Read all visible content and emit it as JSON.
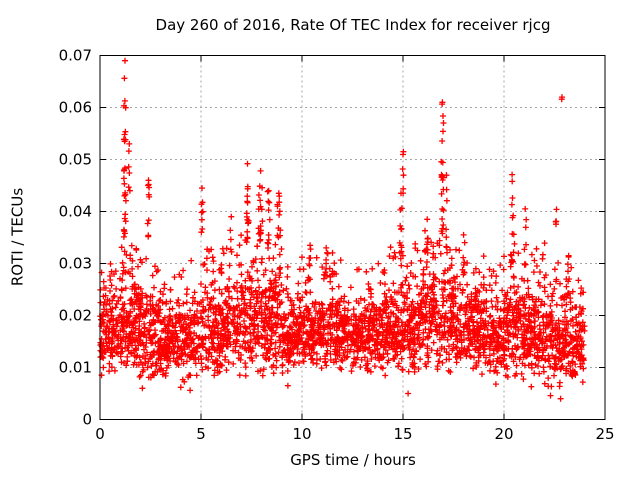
{
  "chart_data": {
    "type": "scatter",
    "title": "Day 260 of 2016, Rate Of TEC Index for receiver rjcg",
    "xlabel": "GPS time / hours",
    "ylabel": "ROTI / TECUs",
    "xlim": [
      0,
      25
    ],
    "ylim": [
      0,
      0.07
    ],
    "xticks": {
      "values": [
        0,
        5,
        10,
        15,
        20,
        25
      ],
      "labels": [
        "0",
        "5",
        "10",
        "15",
        "20",
        "25"
      ]
    },
    "yticks": {
      "values": [
        0,
        0.01,
        0.02,
        0.03,
        0.04,
        0.05,
        0.06,
        0.07
      ],
      "labels": [
        "0",
        "0.01",
        "0.02",
        "0.03",
        "0.04",
        "0.05",
        "0.06",
        "0.07"
      ]
    },
    "grid": "dotted-major",
    "legend": "none",
    "marker": "plus",
    "marker_color": "#ff0000",
    "grid_color": "#a6a6a6",
    "border_color": "#000000",
    "seed": 2016260,
    "base_cloud": {
      "n": 3400,
      "comment": "dense noise band per hour: floor=lower envelope, core=top of dense mass, peak=top of spiky columns (TECU)",
      "floor": [
        0.008,
        0.008,
        0.0075,
        0.0075,
        0.0065,
        0.0075,
        0.008,
        0.008,
        0.008,
        0.0085,
        0.009,
        0.009,
        0.009,
        0.0085,
        0.008,
        0.0075,
        0.008,
        0.008,
        0.008,
        0.008,
        0.0075,
        0.0065,
        0.0055,
        0.007
      ],
      "core": [
        0.024,
        0.026,
        0.024,
        0.022,
        0.023,
        0.025,
        0.025,
        0.028,
        0.027,
        0.022,
        0.023,
        0.024,
        0.022,
        0.023,
        0.025,
        0.025,
        0.029,
        0.029,
        0.025,
        0.022,
        0.025,
        0.024,
        0.022,
        0.022
      ],
      "peak": [
        0.031,
        0.0335,
        0.031,
        0.029,
        0.031,
        0.033,
        0.034,
        0.036,
        0.034,
        0.03,
        0.0335,
        0.033,
        0.029,
        0.03,
        0.0335,
        0.034,
        0.0365,
        0.034,
        0.032,
        0.03,
        0.036,
        0.0355,
        0.031,
        0.03
      ]
    },
    "spikes": [
      {
        "x": 1.24,
        "w": 0.12,
        "n": 26,
        "y0": 0.035,
        "y1": 0.069
      },
      {
        "x": 1.45,
        "w": 0.08,
        "n": 6,
        "y0": 0.044,
        "y1": 0.053
      },
      {
        "x": 2.4,
        "w": 0.1,
        "n": 10,
        "y0": 0.035,
        "y1": 0.046
      },
      {
        "x": 5.05,
        "w": 0.1,
        "n": 8,
        "y0": 0.034,
        "y1": 0.0445
      },
      {
        "x": 6.5,
        "w": 0.12,
        "n": 5,
        "y0": 0.032,
        "y1": 0.039
      },
      {
        "x": 7.3,
        "w": 0.15,
        "n": 14,
        "y0": 0.034,
        "y1": 0.0492
      },
      {
        "x": 7.95,
        "w": 0.2,
        "n": 18,
        "y0": 0.034,
        "y1": 0.0478
      },
      {
        "x": 8.35,
        "w": 0.12,
        "n": 10,
        "y0": 0.033,
        "y1": 0.044
      },
      {
        "x": 8.85,
        "w": 0.15,
        "n": 12,
        "y0": 0.035,
        "y1": 0.0435
      },
      {
        "x": 10.4,
        "w": 0.1,
        "n": 8,
        "y0": 0.026,
        "y1": 0.0335
      },
      {
        "x": 11.2,
        "w": 0.12,
        "n": 7,
        "y0": 0.027,
        "y1": 0.033
      },
      {
        "x": 14.9,
        "w": 0.15,
        "n": 10,
        "y0": 0.032,
        "y1": 0.0435
      },
      {
        "x": 15.02,
        "w": 0.08,
        "n": 6,
        "y0": 0.042,
        "y1": 0.0515
      },
      {
        "x": 16.2,
        "w": 0.12,
        "n": 6,
        "y0": 0.031,
        "y1": 0.0385
      },
      {
        "x": 16.95,
        "w": 0.12,
        "n": 22,
        "y0": 0.035,
        "y1": 0.061
      },
      {
        "x": 17.15,
        "w": 0.1,
        "n": 8,
        "y0": 0.033,
        "y1": 0.047
      },
      {
        "x": 18.0,
        "w": 0.12,
        "n": 6,
        "y0": 0.028,
        "y1": 0.0355
      },
      {
        "x": 20.4,
        "w": 0.15,
        "n": 12,
        "y0": 0.03,
        "y1": 0.0471
      },
      {
        "x": 21.05,
        "w": 0.1,
        "n": 6,
        "y0": 0.029,
        "y1": 0.0405
      },
      {
        "x": 22.6,
        "w": 0.1,
        "n": 5,
        "y0": 0.026,
        "y1": 0.0404
      },
      {
        "x": 22.87,
        "w": 0.06,
        "n": 2,
        "y0": 0.06,
        "y1": 0.062
      },
      {
        "x": 23.2,
        "w": 0.15,
        "n": 8,
        "y0": 0.024,
        "y1": 0.0315
      }
    ],
    "low_outliers": [
      [
        2.1,
        0.006
      ],
      [
        4.0,
        0.0062
      ],
      [
        4.46,
        0.0056
      ],
      [
        9.3,
        0.0065
      ],
      [
        15.25,
        0.005
      ],
      [
        19.6,
        0.0068
      ],
      [
        21.35,
        0.0063
      ],
      [
        22.3,
        0.0046
      ],
      [
        22.8,
        0.004
      ],
      [
        23.9,
        0.0072
      ]
    ]
  }
}
